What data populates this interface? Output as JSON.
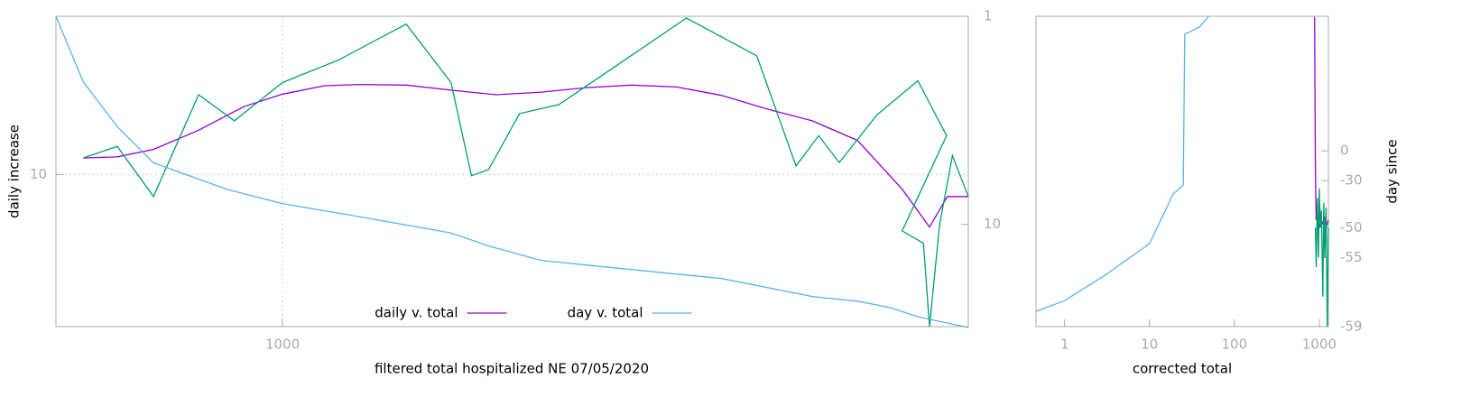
{
  "chart_data": [
    {
      "type": "line",
      "xlabel": "filtered total hospitalized NE 07/05/2020",
      "ylabel": "daily increase",
      "xlog": true,
      "ylog": true,
      "y2log": true,
      "grid": true,
      "legend": "bottom",
      "xlim": [
        350,
        24000
      ],
      "xticks": [
        1000
      ],
      "ylim": [
        3,
        35
      ],
      "yticks": [
        10
      ],
      "y2lim": [
        31,
        1
      ],
      "y2ticks": [
        1,
        10
      ],
      "series": [
        {
          "name": "daily v. total",
          "color": "#9400d3",
          "x": [
            397,
            465,
            550,
            678,
            835,
            1000,
            1217,
            1438,
            1774,
            2184,
            2692,
            3318,
            4092,
            5047,
            6210,
            7658,
            9443,
            11645,
            14357,
            17665,
            20050,
            21780,
            24000
          ],
          "values": [
            11.4,
            11.5,
            12.2,
            14.2,
            17.1,
            18.9,
            20.2,
            20.4,
            20.3,
            19.5,
            18.8,
            19.2,
            19.9,
            20.3,
            20.0,
            18.7,
            16.8,
            15.3,
            13.1,
            8.9,
            6.6,
            8.4,
            8.4
          ]
        },
        {
          "color": "#009e73",
          "x": [
            397,
            465,
            550,
            678,
            800,
            1000,
            1300,
            1774,
            2184,
            2400,
            2600,
            3000,
            3600,
            4600,
            6500,
            9000,
            10800,
            12000,
            13200,
            15700,
            19000,
            21700,
            17665,
            19500,
            20050,
            21000,
            22300,
            24000
          ],
          "values": [
            11.4,
            12.5,
            8.4,
            18.8,
            15.3,
            20.7,
            24.8,
            32.9,
            20.7,
            9.9,
            10.4,
            16.2,
            17.4,
            23.1,
            34.5,
            25.6,
            10.7,
            13.6,
            11.0,
            16.0,
            21.0,
            13.6,
            6.4,
            5.8,
            3.0,
            6.7,
            11.6,
            8.4
          ]
        },
        {
          "name": "day v. total",
          "color": "#56b4e9",
          "axis": "y2",
          "x": [
            350,
            397,
            465,
            550,
            678,
            780,
            1000,
            1438,
            2184,
            2600,
            3318,
            5047,
            7658,
            9443,
            11645,
            14357,
            16700,
            19000,
            24000
          ],
          "values": [
            1.0,
            2.06,
            3.39,
            5.06,
            6.06,
            6.83,
            7.94,
            9.22,
            11.0,
            12.7,
            14.9,
            16.5,
            18.2,
            20.1,
            22.2,
            23.4,
            25.1,
            27.8,
            31.3
          ]
        }
      ]
    },
    {
      "type": "line",
      "xlabel": "corrected total",
      "y2label": "day since",
      "xlog": true,
      "ylog": true,
      "y2log": true,
      "grid": false,
      "xlim": [
        0.46,
        1280
      ],
      "xticks": [
        1,
        10,
        100,
        1000
      ],
      "ylim": [
        1,
        316
      ],
      "y2lim": [
        -59,
        1320
      ],
      "y2ticks": [
        0,
        -30,
        -50,
        -55,
        -59
      ],
      "series": [
        {
          "color": "#56b4e9",
          "x": [
            0.46,
            1,
            3,
            10,
            19,
            25,
            26,
            39,
            50
          ],
          "values": [
            1.33,
            1.62,
            2.6,
            4.66,
            11.7,
            13.8,
            226,
            260,
            316
          ]
        },
        {
          "color": "#9400d3",
          "axis": "y2",
          "x": [
            880,
            900,
            920,
            960,
            1000,
            1050,
            1100,
            1150,
            1200,
            1280
          ],
          "values": [
            1300,
            -20,
            -48,
            -47,
            -50,
            -48,
            -49,
            -47,
            -50,
            -48
          ]
        },
        {
          "color": "#009e73",
          "axis": "y2",
          "x": [
            900,
            920,
            950,
            980,
            1000,
            1030,
            1060,
            1100,
            1130,
            1160,
            1200,
            1240,
            1280
          ],
          "values": [
            -50,
            -56,
            -40,
            -55,
            -35,
            -50,
            -45,
            -58,
            -42,
            -55,
            -44,
            -59,
            -50
          ]
        }
      ]
    }
  ]
}
